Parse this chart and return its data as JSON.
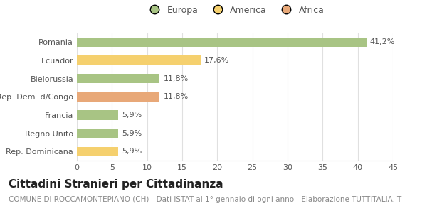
{
  "categories": [
    "Romania",
    "Ecuador",
    "Bielorussia",
    "Rep. Dem. d/Congo",
    "Francia",
    "Regno Unito",
    "Rep. Dominicana"
  ],
  "values": [
    41.2,
    17.6,
    11.8,
    11.8,
    5.9,
    5.9,
    5.9
  ],
  "labels": [
    "41,2%",
    "17,6%",
    "11,8%",
    "11,8%",
    "5,9%",
    "5,9%",
    "5,9%"
  ],
  "colors": [
    "#a8c484",
    "#f5d06e",
    "#a8c484",
    "#e8a878",
    "#a8c484",
    "#a8c484",
    "#f5d06e"
  ],
  "legend_items": [
    {
      "label": "Europa",
      "color": "#a8c484"
    },
    {
      "label": "America",
      "color": "#f5d06e"
    },
    {
      "label": "Africa",
      "color": "#e8a878"
    }
  ],
  "xlim": [
    0,
    45
  ],
  "xticks": [
    0,
    5,
    10,
    15,
    20,
    25,
    30,
    35,
    40,
    45
  ],
  "title": "Cittadini Stranieri per Cittadinanza",
  "subtitle": "COMUNE DI ROCCAMONTEPIANO (CH) - Dati ISTAT al 1° gennaio di ogni anno - Elaborazione TUTTITALIA.IT",
  "background_color": "#ffffff",
  "bar_height": 0.52,
  "title_fontsize": 11,
  "subtitle_fontsize": 7.5,
  "label_fontsize": 8,
  "tick_fontsize": 8,
  "legend_fontsize": 9,
  "grid_color": "#e0e0e0",
  "spine_color": "#cccccc",
  "text_color": "#555555",
  "title_color": "#222222",
  "subtitle_color": "#888888"
}
